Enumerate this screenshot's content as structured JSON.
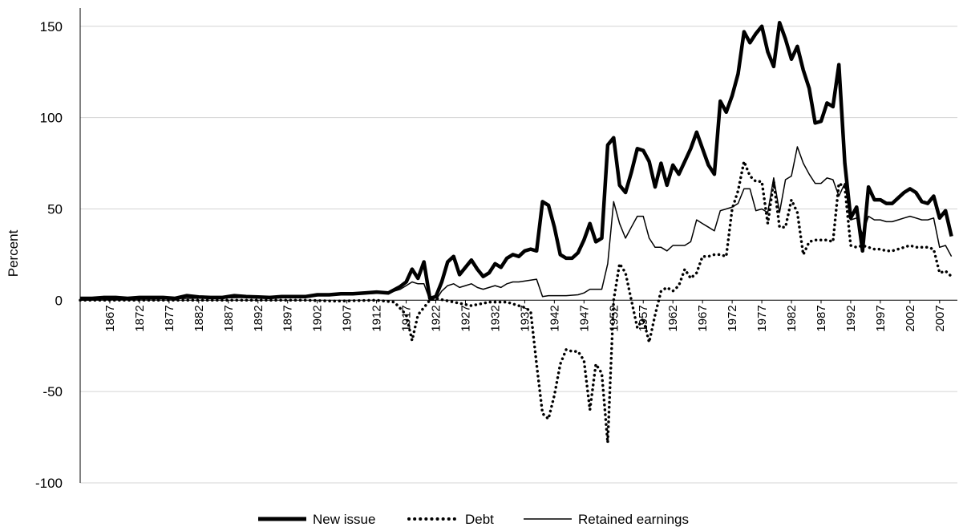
{
  "chart_data": {
    "type": "line",
    "title": "",
    "xlabel": "",
    "ylabel": "Percent",
    "ylim": [
      -100,
      160
    ],
    "xlim": [
      1862,
      2010
    ],
    "y_ticks": [
      -100,
      -50,
      0,
      50,
      100,
      150
    ],
    "y_tick_labels": [
      "-100",
      "-50",
      "0",
      "50",
      "100",
      "150"
    ],
    "x_ticks": [
      1867,
      1872,
      1877,
      1882,
      1887,
      1892,
      1897,
      1902,
      1907,
      1912,
      1917,
      1922,
      1927,
      1932,
      1937,
      1942,
      1947,
      1952,
      1957,
      1962,
      1967,
      1972,
      1977,
      1982,
      1987,
      1992,
      1997,
      2002,
      2007
    ],
    "x_tick_labels": [
      "1867",
      "1872",
      "1877",
      "1882",
      "1887",
      "1892",
      "1897",
      "1902",
      "1907",
      "1912",
      "1917",
      "1922",
      "1927",
      "1932",
      "1937",
      "1942",
      "1947",
      "1952",
      "1957",
      "1962",
      "1967",
      "1972",
      "1977",
      "1982",
      "1987",
      "1992",
      "1997",
      "2002",
      "2007"
    ],
    "grid": "horizontal",
    "legend_position": "bottom",
    "series": [
      {
        "name": "New issue",
        "style": "thick-solid",
        "color": "#000000",
        "points": [
          [
            1862,
            1
          ],
          [
            1864,
            1
          ],
          [
            1866,
            1.5
          ],
          [
            1868,
            1.5
          ],
          [
            1870,
            1
          ],
          [
            1872,
            1.5
          ],
          [
            1874,
            1.5
          ],
          [
            1876,
            1.5
          ],
          [
            1878,
            1
          ],
          [
            1880,
            2.5
          ],
          [
            1882,
            1.8
          ],
          [
            1884,
            1.5
          ],
          [
            1886,
            1.5
          ],
          [
            1888,
            2.5
          ],
          [
            1890,
            2
          ],
          [
            1892,
            1.8
          ],
          [
            1894,
            1.5
          ],
          [
            1896,
            2
          ],
          [
            1898,
            2
          ],
          [
            1900,
            2
          ],
          [
            1902,
            3
          ],
          [
            1904,
            3
          ],
          [
            1906,
            3.5
          ],
          [
            1908,
            3.5
          ],
          [
            1910,
            4
          ],
          [
            1912,
            4.5
          ],
          [
            1914,
            4
          ],
          [
            1916,
            7.5
          ],
          [
            1917,
            10
          ],
          [
            1918,
            17
          ],
          [
            1919,
            12
          ],
          [
            1920,
            21
          ],
          [
            1921,
            1
          ],
          [
            1922,
            2
          ],
          [
            1923,
            10
          ],
          [
            1924,
            21
          ],
          [
            1925,
            24
          ],
          [
            1926,
            14
          ],
          [
            1927,
            18
          ],
          [
            1928,
            22
          ],
          [
            1929,
            17
          ],
          [
            1930,
            13
          ],
          [
            1931,
            15
          ],
          [
            1932,
            20
          ],
          [
            1933,
            18
          ],
          [
            1934,
            23
          ],
          [
            1935,
            25
          ],
          [
            1936,
            24
          ],
          [
            1937,
            27
          ],
          [
            1938,
            28
          ],
          [
            1939,
            27
          ],
          [
            1940,
            54
          ],
          [
            1941,
            52
          ],
          [
            1942,
            40
          ],
          [
            1943,
            25
          ],
          [
            1944,
            23
          ],
          [
            1945,
            23
          ],
          [
            1946,
            26
          ],
          [
            1947,
            33
          ],
          [
            1948,
            42
          ],
          [
            1949,
            32
          ],
          [
            1950,
            34
          ],
          [
            1951,
            85
          ],
          [
            1952,
            89
          ],
          [
            1953,
            63
          ],
          [
            1954,
            59
          ],
          [
            1955,
            70
          ],
          [
            1956,
            83
          ],
          [
            1957,
            82
          ],
          [
            1958,
            76
          ],
          [
            1959,
            62
          ],
          [
            1960,
            75
          ],
          [
            1961,
            63
          ],
          [
            1962,
            74
          ],
          [
            1963,
            69
          ],
          [
            1964,
            76
          ],
          [
            1965,
            83
          ],
          [
            1966,
            92
          ],
          [
            1967,
            83
          ],
          [
            1968,
            74
          ],
          [
            1969,
            69
          ],
          [
            1970,
            109
          ],
          [
            1971,
            103
          ],
          [
            1972,
            112
          ],
          [
            1973,
            124
          ],
          [
            1974,
            147
          ],
          [
            1975,
            141
          ],
          [
            1976,
            146
          ],
          [
            1977,
            150
          ],
          [
            1978,
            136
          ],
          [
            1979,
            128
          ],
          [
            1980,
            152
          ],
          [
            1981,
            143
          ],
          [
            1982,
            132
          ],
          [
            1983,
            139
          ],
          [
            1984,
            126
          ],
          [
            1985,
            116
          ],
          [
            1986,
            97
          ],
          [
            1987,
            98
          ],
          [
            1988,
            108
          ],
          [
            1989,
            106
          ],
          [
            1990,
            129
          ],
          [
            1991,
            75
          ],
          [
            1992,
            45
          ],
          [
            1993,
            51
          ],
          [
            1994,
            27
          ],
          [
            1995,
            62
          ],
          [
            1996,
            55
          ],
          [
            1997,
            55
          ],
          [
            1998,
            53
          ],
          [
            1999,
            53
          ],
          [
            2000,
            56
          ],
          [
            2001,
            59
          ],
          [
            2002,
            61
          ],
          [
            2003,
            59
          ],
          [
            2004,
            54
          ],
          [
            2005,
            53
          ],
          [
            2006,
            57
          ],
          [
            2007,
            45
          ],
          [
            2008,
            49
          ],
          [
            2009,
            35
          ]
        ]
      },
      {
        "name": "Debt",
        "style": "dotted",
        "color": "#000000",
        "points": [
          [
            1862,
            0
          ],
          [
            1880,
            0
          ],
          [
            1900,
            0
          ],
          [
            1905,
            -0.5
          ],
          [
            1912,
            0
          ],
          [
            1915,
            -1
          ],
          [
            1917,
            -8
          ],
          [
            1918,
            -22
          ],
          [
            1919,
            -8
          ],
          [
            1921,
            0
          ],
          [
            1922,
            1
          ],
          [
            1925,
            -1
          ],
          [
            1928,
            -3
          ],
          [
            1931,
            -1
          ],
          [
            1934,
            -1
          ],
          [
            1936,
            -3
          ],
          [
            1937,
            -4
          ],
          [
            1938,
            -6
          ],
          [
            1939,
            -35
          ],
          [
            1940,
            -62
          ],
          [
            1941,
            -65
          ],
          [
            1942,
            -52
          ],
          [
            1943,
            -35
          ],
          [
            1944,
            -27
          ],
          [
            1945,
            -28
          ],
          [
            1946,
            -28
          ],
          [
            1947,
            -33
          ],
          [
            1948,
            -60
          ],
          [
            1949,
            -35
          ],
          [
            1950,
            -40
          ],
          [
            1951,
            -78
          ],
          [
            1952,
            0
          ],
          [
            1953,
            20
          ],
          [
            1954,
            15
          ],
          [
            1955,
            0
          ],
          [
            1956,
            -15
          ],
          [
            1957,
            -10
          ],
          [
            1958,
            -23
          ],
          [
            1959,
            -8
          ],
          [
            1960,
            5
          ],
          [
            1961,
            7
          ],
          [
            1962,
            5
          ],
          [
            1963,
            8
          ],
          [
            1964,
            17
          ],
          [
            1965,
            12
          ],
          [
            1966,
            15
          ],
          [
            1967,
            24
          ],
          [
            1968,
            24
          ],
          [
            1969,
            25
          ],
          [
            1970,
            25
          ],
          [
            1971,
            24
          ],
          [
            1972,
            50
          ],
          [
            1973,
            60
          ],
          [
            1974,
            76
          ],
          [
            1975,
            68
          ],
          [
            1976,
            65
          ],
          [
            1977,
            65
          ],
          [
            1978,
            42
          ],
          [
            1979,
            65
          ],
          [
            1980,
            40
          ],
          [
            1981,
            40
          ],
          [
            1982,
            55
          ],
          [
            1983,
            48
          ],
          [
            1984,
            25
          ],
          [
            1985,
            32
          ],
          [
            1986,
            33
          ],
          [
            1987,
            33
          ],
          [
            1988,
            33
          ],
          [
            1989,
            32
          ],
          [
            1990,
            64
          ],
          [
            1991,
            62
          ],
          [
            1992,
            30
          ],
          [
            1993,
            29
          ],
          [
            1994,
            30
          ],
          [
            1995,
            29
          ],
          [
            1996,
            28
          ],
          [
            1997,
            28
          ],
          [
            1998,
            27
          ],
          [
            1999,
            27
          ],
          [
            2000,
            28
          ],
          [
            2001,
            29
          ],
          [
            2002,
            30
          ],
          [
            2003,
            29
          ],
          [
            2004,
            29
          ],
          [
            2005,
            29
          ],
          [
            2006,
            28
          ],
          [
            2007,
            15
          ],
          [
            2008,
            16
          ],
          [
            2009,
            13
          ]
        ]
      },
      {
        "name": "Retained earnings",
        "style": "thin-solid",
        "color": "#000000",
        "points": [
          [
            1862,
            0
          ],
          [
            1880,
            1
          ],
          [
            1890,
            1.5
          ],
          [
            1900,
            2
          ],
          [
            1905,
            3
          ],
          [
            1910,
            3.5
          ],
          [
            1914,
            4
          ],
          [
            1916,
            6
          ],
          [
            1917,
            8
          ],
          [
            1918,
            10
          ],
          [
            1919,
            9
          ],
          [
            1920,
            9
          ],
          [
            1921,
            0
          ],
          [
            1922,
            0
          ],
          [
            1923,
            5
          ],
          [
            1924,
            8
          ],
          [
            1925,
            9
          ],
          [
            1926,
            7
          ],
          [
            1927,
            8
          ],
          [
            1928,
            9
          ],
          [
            1929,
            7
          ],
          [
            1930,
            6
          ],
          [
            1931,
            7
          ],
          [
            1932,
            8
          ],
          [
            1933,
            7
          ],
          [
            1934,
            9
          ],
          [
            1935,
            10
          ],
          [
            1936,
            10
          ],
          [
            1937,
            10.5
          ],
          [
            1938,
            11
          ],
          [
            1939,
            11.5
          ],
          [
            1940,
            2
          ],
          [
            1941,
            2.5
          ],
          [
            1942,
            2.5
          ],
          [
            1944,
            2.5
          ],
          [
            1946,
            3
          ],
          [
            1947,
            4
          ],
          [
            1948,
            6
          ],
          [
            1949,
            6
          ],
          [
            1950,
            6
          ],
          [
            1951,
            20
          ],
          [
            1952,
            54
          ],
          [
            1953,
            42
          ],
          [
            1954,
            34
          ],
          [
            1955,
            40
          ],
          [
            1956,
            46
          ],
          [
            1957,
            46
          ],
          [
            1958,
            34
          ],
          [
            1959,
            29
          ],
          [
            1960,
            29
          ],
          [
            1961,
            27
          ],
          [
            1962,
            30
          ],
          [
            1963,
            30
          ],
          [
            1964,
            30
          ],
          [
            1965,
            32
          ],
          [
            1966,
            44
          ],
          [
            1967,
            42
          ],
          [
            1968,
            40
          ],
          [
            1969,
            38
          ],
          [
            1970,
            49
          ],
          [
            1971,
            50
          ],
          [
            1972,
            51
          ],
          [
            1973,
            53
          ],
          [
            1974,
            61
          ],
          [
            1975,
            61
          ],
          [
            1976,
            49
          ],
          [
            1977,
            50
          ],
          [
            1978,
            48
          ],
          [
            1979,
            67
          ],
          [
            1980,
            48
          ],
          [
            1981,
            66
          ],
          [
            1982,
            68
          ],
          [
            1983,
            84
          ],
          [
            1984,
            75
          ],
          [
            1985,
            69
          ],
          [
            1986,
            64
          ],
          [
            1987,
            64
          ],
          [
            1988,
            67
          ],
          [
            1989,
            66
          ],
          [
            1990,
            57
          ],
          [
            1991,
            64
          ],
          [
            1992,
            44
          ],
          [
            1993,
            45
          ],
          [
            1994,
            36
          ],
          [
            1995,
            46
          ],
          [
            1996,
            44
          ],
          [
            1997,
            44
          ],
          [
            1998,
            43
          ],
          [
            1999,
            43
          ],
          [
            2000,
            44
          ],
          [
            2001,
            45
          ],
          [
            2002,
            46
          ],
          [
            2003,
            45
          ],
          [
            2004,
            44
          ],
          [
            2005,
            44
          ],
          [
            2006,
            45
          ],
          [
            2007,
            29
          ],
          [
            2008,
            30
          ],
          [
            2009,
            24
          ]
        ]
      }
    ]
  },
  "legend": {
    "items": [
      {
        "label": "New issue"
      },
      {
        "label": "Debt"
      },
      {
        "label": "Retained earnings"
      }
    ]
  }
}
